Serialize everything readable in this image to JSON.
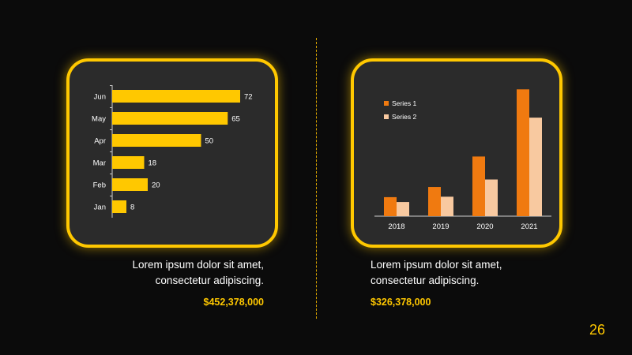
{
  "chart_data": [
    {
      "type": "bar",
      "orientation": "horizontal",
      "categories": [
        "Jan",
        "Feb",
        "Mar",
        "Apr",
        "May",
        "Jun"
      ],
      "values": [
        8,
        20,
        18,
        50,
        65,
        72
      ],
      "xlim": [
        0,
        80
      ],
      "color": "#ffc800"
    },
    {
      "type": "bar",
      "categories": [
        "2018",
        "2019",
        "2020",
        "2021"
      ],
      "series": [
        {
          "name": "Series 1",
          "values": [
            4.3,
            6.6,
            13.5,
            28.7
          ],
          "color": "#f07a10"
        },
        {
          "name": "Series 2",
          "values": [
            3.2,
            4.4,
            8.3,
            22.3
          ],
          "color": "#f8c9a0"
        }
      ],
      "ylim": [
        0,
        30
      ],
      "legend": "top-left"
    }
  ],
  "captions": {
    "left": {
      "line1": "Lorem ipsum dolor sit amet,",
      "line2": "consectetur adipiscing.",
      "amount": "$452,378,000"
    },
    "right": {
      "line1": "Lorem ipsum dolor sit amet,",
      "line2": "consectetur adipiscing.",
      "amount": "$326,378,000"
    }
  },
  "slide_number": "26"
}
